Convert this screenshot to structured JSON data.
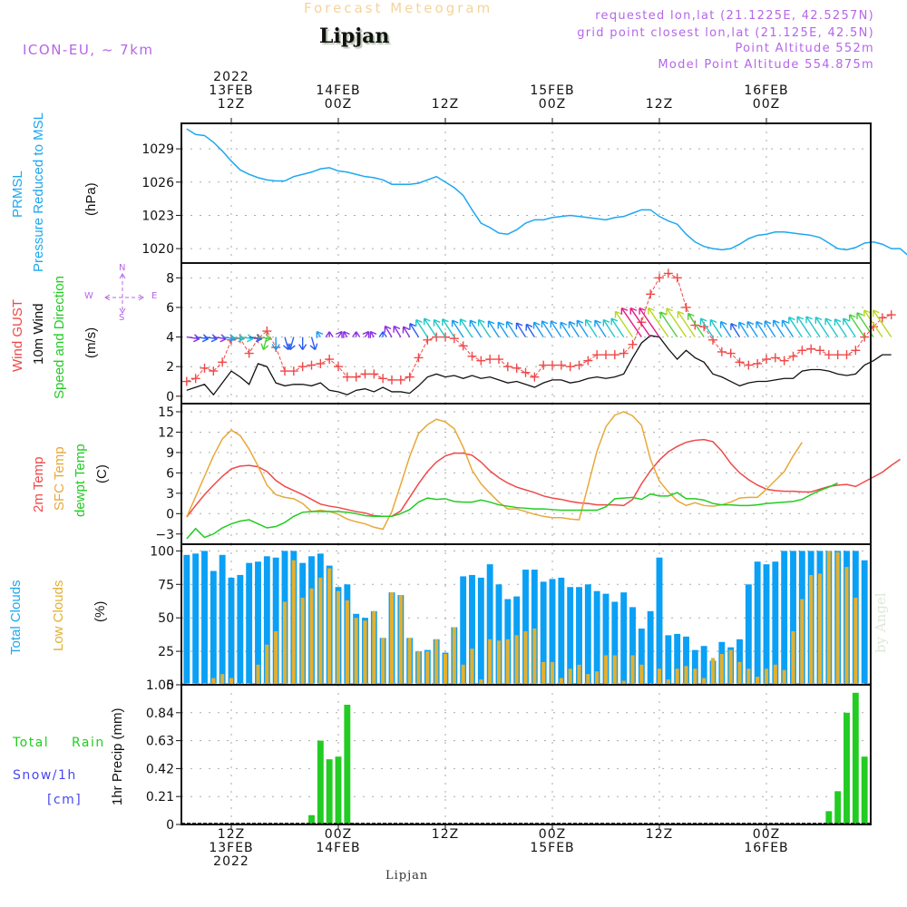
{
  "header": {
    "title": "Forecast Meteogram",
    "station": "Lipjan",
    "model": "ICON-EU, ~ 7km",
    "requested": "requested lon,lat (21.1225E, 42.5257N)",
    "gridpoint": "grid point closest lon,lat (21.125E, 42.5N)",
    "altitude": "Point Altitude 552m",
    "model_altitude": "Model Point Altitude 554.875m"
  },
  "top_axis": [
    {
      "l1": "2022",
      "l2": "13FEB",
      "l3": "12Z",
      "h": 12
    },
    {
      "l1": "",
      "l2": "14FEB",
      "l3": "00Z",
      "h": 24
    },
    {
      "l1": "",
      "l2": "",
      "l3": "12Z",
      "h": 36
    },
    {
      "l1": "",
      "l2": "15FEB",
      "l3": "00Z",
      "h": 48
    },
    {
      "l1": "",
      "l2": "",
      "l3": "12Z",
      "h": 60
    },
    {
      "l1": "",
      "l2": "16FEB",
      "l3": "00Z",
      "h": 72
    }
  ],
  "bottom_axis": [
    {
      "l1": "12Z",
      "l2": "13FEB",
      "l3": "2022",
      "h": 12
    },
    {
      "l1": "00Z",
      "l2": "14FEB",
      "l3": "",
      "h": 24
    },
    {
      "l1": "12Z",
      "l2": "",
      "l3": "",
      "h": 36
    },
    {
      "l1": "00Z",
      "l2": "15FEB",
      "l3": "",
      "h": 48
    },
    {
      "l1": "12Z",
      "l2": "",
      "l3": "",
      "h": 60
    },
    {
      "l1": "00Z",
      "l2": "16FEB",
      "l3": "",
      "h": 72
    }
  ],
  "footer": "Lipjan",
  "watermark": "by Angel",
  "labels": {
    "prmsl": "PRMSL",
    "prmsl_long": "Pressure Reduced to MSL",
    "hpa": "(hPa)",
    "gust": "Wind GUST",
    "wind10": "10m Wind",
    "speed_dir": "Speed and Direction",
    "ms": "(m/s)",
    "compass_n": "N",
    "compass_s": "S",
    "compass_w": "W",
    "compass_e": "E",
    "t2m": "2m Temp",
    "tsfc": "SFC Temp",
    "dewpt": "dewpt Temp",
    "degc": "(C)",
    "total_clouds": "Total Clouds",
    "low_clouds": "Low Clouds",
    "pct": "(%)",
    "precip": "1hr Precip (mm)",
    "total": "Total",
    "rain": "Rain",
    "snow": "Snow/1h",
    "cm": "[cm]"
  },
  "colors": {
    "pressure": "#1ea7f0",
    "gust": "#f04848",
    "wind": "#111111",
    "t2m": "#f04848",
    "tsfc": "#e8a838",
    "dewpt": "#22cc22",
    "total_clouds": "#0aa0f5",
    "low_clouds": "#e3b030",
    "rain": "#22cc22",
    "info": "#b566e8"
  },
  "chart_data": [
    {
      "type": "line",
      "title": "PRMSL Pressure Reduced to MSL",
      "ylabel": "(hPa)",
      "x_start_hour": 7,
      "x_step_hours": 1,
      "ylim": [
        1018.7,
        1031.3
      ],
      "yticks": [
        1020,
        1023,
        1026,
        1029
      ],
      "series": [
        {
          "name": "PRMSL",
          "values": [
            1030.8,
            1030.3,
            1030.2,
            1029.6,
            1028.8,
            1027.9,
            1027.1,
            1026.7,
            1026.4,
            1026.2,
            1026.1,
            1026.1,
            1026.5,
            1026.7,
            1026.9,
            1027.2,
            1027.3,
            1027.0,
            1026.9,
            1026.7,
            1026.5,
            1026.4,
            1026.2,
            1025.8,
            1025.8,
            1025.8,
            1025.9,
            1026.2,
            1026.5,
            1026.0,
            1025.5,
            1024.8,
            1023.5,
            1022.3,
            1021.9,
            1021.4,
            1021.3,
            1021.7,
            1022.3,
            1022.6,
            1022.6,
            1022.8,
            1022.9,
            1023.0,
            1022.9,
            1022.8,
            1022.7,
            1022.6,
            1022.8,
            1022.9,
            1023.2,
            1023.5,
            1023.5,
            1022.9,
            1022.5,
            1022.2,
            1021.3,
            1020.6,
            1020.2,
            1020.0,
            1019.9,
            1020.0,
            1020.4,
            1020.9,
            1021.2,
            1021.3,
            1021.5,
            1021.5,
            1021.4,
            1021.3,
            1021.2,
            1021.0,
            1020.5,
            1020.0,
            1019.9,
            1020.1,
            1020.5,
            1020.6,
            1020.4,
            1020.0,
            1020.0,
            1019.3
          ]
        }
      ]
    },
    {
      "type": "line",
      "title": "Wind GUST / 10m Wind Speed and Direction",
      "ylabel": "(m/s)",
      "x_start_hour": 7,
      "x_step_hours": 1,
      "ylim": [
        -0.5,
        9.0
      ],
      "yticks": [
        0,
        2,
        4,
        6,
        8
      ],
      "series": [
        {
          "name": "Wind GUST",
          "values": [
            1.0,
            1.2,
            1.9,
            1.7,
            2.3,
            3.8,
            3.9,
            2.9,
            3.9,
            4.4,
            3.3,
            1.7,
            1.7,
            2.0,
            2.1,
            2.2,
            2.5,
            2.0,
            1.3,
            1.3,
            1.5,
            1.5,
            1.2,
            1.1,
            1.1,
            1.3,
            2.6,
            3.8,
            4.0,
            4.0,
            3.9,
            3.4,
            2.7,
            2.4,
            2.5,
            2.5,
            2.0,
            1.9,
            1.6,
            1.3,
            2.1,
            2.1,
            2.1,
            2.0,
            2.1,
            2.4,
            2.8,
            2.8,
            2.8,
            2.9,
            3.5,
            5.0,
            6.9,
            8.0,
            8.3,
            8.0,
            6.0,
            4.8,
            4.7,
            3.8,
            3.0,
            2.9,
            2.3,
            2.1,
            2.2,
            2.5,
            2.6,
            2.4,
            2.7,
            3.1,
            3.2,
            3.1,
            2.8,
            2.8,
            2.8,
            3.1,
            4.0,
            4.7,
            5.3,
            5.5
          ]
        },
        {
          "name": "10m Wind",
          "values": [
            0.4,
            0.6,
            0.8,
            0.1,
            0.9,
            1.7,
            1.3,
            0.8,
            2.2,
            2.0,
            0.9,
            0.7,
            0.8,
            0.8,
            0.7,
            0.9,
            0.4,
            0.3,
            0.1,
            0.4,
            0.5,
            0.3,
            0.6,
            0.3,
            0.3,
            0.2,
            0.7,
            1.3,
            1.5,
            1.3,
            1.4,
            1.2,
            1.4,
            1.2,
            1.3,
            1.1,
            0.9,
            1.0,
            0.8,
            0.6,
            0.9,
            1.1,
            1.1,
            0.9,
            1.0,
            1.2,
            1.3,
            1.2,
            1.3,
            1.5,
            2.6,
            3.6,
            4.1,
            4.0,
            3.2,
            2.5,
            3.1,
            2.6,
            2.3,
            1.5,
            1.3,
            1.0,
            0.7,
            0.9,
            1.0,
            1.0,
            1.1,
            1.2,
            1.2,
            1.7,
            1.8,
            1.8,
            1.7,
            1.5,
            1.4,
            1.5,
            2.1,
            2.4,
            2.8,
            2.8
          ]
        }
      ],
      "wind_direction": "arrows plotted along y=4; mostly from S/SE early, northwest-pointing arrows later; stronger arrows colored green/yellow/magenta"
    },
    {
      "type": "line",
      "title": "2m Temp / SFC Temp / dewpt Temp",
      "ylabel": "(C)",
      "x_start_hour": 7,
      "x_step_hours": 1,
      "ylim": [
        -4.5,
        16.2
      ],
      "yticks": [
        -3,
        0,
        3,
        6,
        9,
        12,
        15
      ],
      "series": [
        {
          "name": "2m Temp",
          "values": [
            -0.5,
            1.2,
            2.8,
            4.2,
            5.5,
            6.6,
            7.0,
            7.1,
            6.9,
            6.2,
            4.9,
            4.0,
            3.4,
            2.8,
            2.1,
            1.4,
            1.1,
            0.9,
            0.6,
            0.3,
            0.1,
            -0.3,
            -0.4,
            -0.4,
            0.4,
            2.4,
            4.4,
            6.2,
            7.6,
            8.5,
            8.9,
            8.9,
            8.6,
            7.6,
            6.3,
            5.3,
            4.5,
            3.9,
            3.5,
            3.1,
            2.6,
            2.3,
            2.1,
            1.8,
            1.6,
            1.5,
            1.3,
            1.3,
            1.3,
            1.2,
            2.1,
            4.4,
            6.3,
            7.9,
            9.1,
            9.9,
            10.5,
            10.8,
            10.9,
            10.6,
            9.2,
            7.4,
            6.0,
            5.0,
            4.2,
            3.6,
            3.4,
            3.3,
            3.3,
            3.2,
            3.2,
            3.6,
            4.0,
            4.2,
            4.3,
            4.0,
            4.7,
            5.4,
            6.1,
            7.1,
            8.0
          ]
        },
        {
          "name": "SFC Temp",
          "values": [
            -0.5,
            2.5,
            5.5,
            8.5,
            11.0,
            12.3,
            11.5,
            9.5,
            7.0,
            4.2,
            2.8,
            2.4,
            2.2,
            1.5,
            0.3,
            0.5,
            0.3,
            -0.1,
            -0.8,
            -1.2,
            -1.5,
            -2.0,
            -2.3,
            0.3,
            4.3,
            8.4,
            11.8,
            13.1,
            13.9,
            13.5,
            12.5,
            9.8,
            6.4,
            4.4,
            3.0,
            1.7,
            0.7,
            0.7,
            0.3,
            -0.1,
            -0.4,
            -0.6,
            -0.6,
            -0.8,
            -0.9,
            4.1,
            9.2,
            12.8,
            14.5,
            15.0,
            14.4,
            13.0,
            8.0,
            4.8,
            3.2,
            1.9,
            1.2,
            1.6,
            1.2,
            1.1,
            1.3,
            1.7,
            2.3,
            2.4,
            2.4,
            3.6,
            4.9,
            6.2,
            8.5,
            10.5
          ]
        },
        {
          "name": "dewpt Temp",
          "values": [
            -3.7,
            -2.2,
            -3.5,
            -3.0,
            -2.1,
            -1.5,
            -1.1,
            -0.9,
            -1.5,
            -2.1,
            -1.9,
            -1.3,
            -0.4,
            0.2,
            0.3,
            0.3,
            0.3,
            0.3,
            0.2,
            0.0,
            -0.3,
            -0.4,
            -0.4,
            -0.4,
            0.0,
            0.6,
            1.7,
            2.3,
            2.1,
            2.2,
            1.8,
            1.7,
            1.7,
            2.0,
            1.7,
            1.3,
            1.1,
            0.9,
            0.8,
            0.7,
            0.7,
            0.6,
            0.5,
            0.5,
            0.5,
            0.5,
            0.5,
            1.0,
            2.2,
            2.3,
            2.4,
            2.1,
            2.9,
            2.6,
            2.6,
            3.1,
            2.2,
            2.2,
            2.0,
            1.5,
            1.3,
            1.3,
            1.2,
            1.2,
            1.3,
            1.5,
            1.6,
            1.7,
            1.8,
            2.1,
            2.8,
            3.4,
            3.9,
            4.5
          ]
        }
      ]
    },
    {
      "type": "bar",
      "title": "Total Clouds / Low Clouds",
      "ylabel": "(%)",
      "x_start_hour": 7,
      "x_step_hours": 1,
      "ylim": [
        0,
        105
      ],
      "yticks": [
        0,
        25,
        50,
        75,
        100
      ],
      "series": [
        {
          "name": "Total Clouds",
          "values": [
            97,
            98,
            100,
            85,
            97,
            80,
            82,
            91,
            92,
            96,
            95,
            100,
            100,
            91,
            96,
            98,
            89,
            73,
            75,
            53,
            50,
            55,
            35,
            69,
            67,
            35,
            25,
            26,
            34,
            24,
            43,
            81,
            82,
            80,
            90,
            75,
            64,
            66,
            86,
            86,
            77,
            79,
            80,
            73,
            73,
            75,
            70,
            68,
            62,
            69,
            58,
            42,
            55,
            95,
            37,
            38,
            36,
            26,
            29,
            18,
            32,
            28,
            34,
            75,
            92,
            90,
            92,
            100,
            100,
            100,
            100,
            100,
            100,
            100,
            100,
            100,
            93,
            100
          ]
        },
        {
          "name": "Low Clouds",
          "values": [
            1,
            1,
            1,
            5,
            8,
            5,
            1,
            1,
            15,
            30,
            40,
            62,
            93,
            65,
            72,
            80,
            87,
            70,
            63,
            50,
            48,
            55,
            35,
            69,
            67,
            35,
            25,
            25,
            34,
            23,
            43,
            15,
            27,
            4,
            34,
            33,
            34,
            37,
            40,
            42,
            17,
            17,
            5,
            12,
            15,
            8,
            10,
            22,
            22,
            3,
            22,
            15,
            0,
            12,
            4,
            12,
            14,
            12,
            5,
            20,
            23,
            26,
            17,
            12,
            6,
            12,
            15,
            11,
            40,
            64,
            82,
            83,
            100,
            99,
            88,
            65
          ]
        }
      ]
    },
    {
      "type": "bar",
      "title": "1hr Precip (mm)",
      "ylabel": "1hr Precip (mm)",
      "x_start_hour": 7,
      "x_step_hours": 1,
      "ylim": [
        0,
        1.05
      ],
      "yticks": [
        0,
        0.21,
        0.42,
        0.63,
        0.84,
        1.05
      ],
      "series": [
        {
          "name": "Total Rain",
          "values": [
            0,
            0,
            0,
            0,
            0,
            0,
            0,
            0,
            0,
            0,
            0,
            0,
            0,
            0,
            0.07,
            0.63,
            0.49,
            0.51,
            0.9,
            0.01,
            0,
            0,
            0,
            0,
            0,
            0,
            0,
            0,
            0,
            0,
            0,
            0,
            0,
            0,
            0,
            0,
            0,
            0,
            0,
            0,
            0,
            0,
            0,
            0,
            0,
            0,
            0,
            0,
            0,
            0,
            0,
            0,
            0,
            0,
            0,
            0,
            0,
            0,
            0,
            0,
            0,
            0,
            0,
            0,
            0,
            0,
            0,
            0,
            0,
            0,
            0,
            0,
            0.1,
            0.25,
            0.84,
            0.99,
            0.51,
            0.22
          ]
        },
        {
          "name": "Snow/1h [cm]",
          "values": []
        }
      ]
    }
  ]
}
